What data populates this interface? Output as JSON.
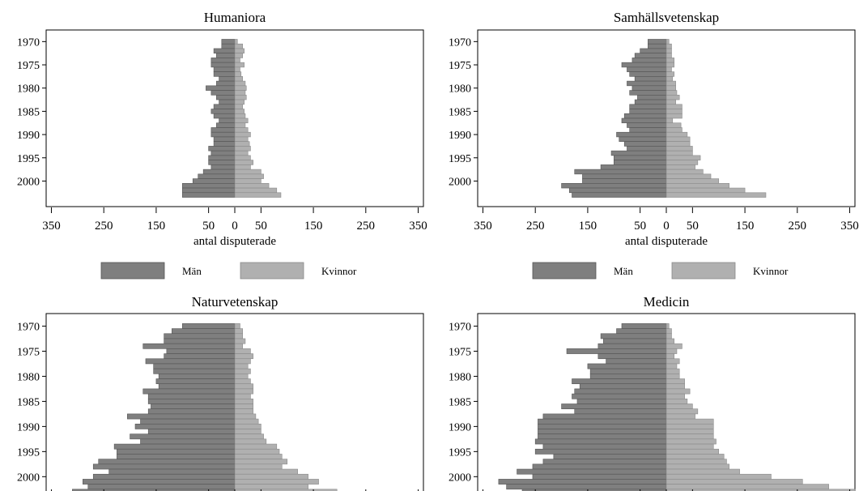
{
  "colors": {
    "men": "#7f7f7f",
    "women": "#b0b0b0",
    "frame": "#000000",
    "background": "#ffffff"
  },
  "xlabel": "antal disputerade",
  "legend": {
    "men_label": "Män",
    "women_label": "Kvinnor"
  },
  "chart_data": [
    {
      "type": "bar",
      "orientation": "population-pyramid",
      "title": "Humaniora",
      "xlabel": "antal disputerade",
      "xlim": [
        -360,
        360
      ],
      "xticks": [
        -350,
        -250,
        -150,
        -50,
        0,
        50,
        150,
        250,
        350
      ],
      "xtick_labels": [
        "350",
        "250",
        "150",
        "50",
        "0",
        "50",
        "150",
        "250",
        "350"
      ],
      "ylim": [
        1967.5,
        2005.5
      ],
      "yticks": [
        1970,
        1975,
        1980,
        1985,
        1990,
        1995,
        2000
      ],
      "categories": [
        1970,
        1971,
        1972,
        1973,
        1974,
        1975,
        1976,
        1977,
        1978,
        1979,
        1980,
        1981,
        1982,
        1983,
        1984,
        1985,
        1986,
        1987,
        1988,
        1989,
        1990,
        1991,
        1992,
        1993,
        1994,
        1995,
        1996,
        1997,
        1998,
        1999,
        2000,
        2001,
        2002,
        2003
      ],
      "legend": [
        "Män",
        "Kvinnor"
      ],
      "series": [
        {
          "name": "Män",
          "values": [
            25,
            25,
            40,
            35,
            45,
            45,
            40,
            40,
            30,
            35,
            55,
            45,
            35,
            30,
            40,
            45,
            40,
            30,
            35,
            45,
            45,
            40,
            40,
            50,
            45,
            50,
            50,
            45,
            60,
            70,
            80,
            100,
            100,
            100
          ]
        },
        {
          "name": "Kvinnor",
          "values": [
            5,
            15,
            18,
            15,
            10,
            18,
            10,
            12,
            15,
            20,
            22,
            20,
            22,
            18,
            15,
            18,
            20,
            25,
            20,
            25,
            30,
            25,
            28,
            30,
            25,
            30,
            35,
            30,
            50,
            55,
            50,
            65,
            80,
            88
          ]
        }
      ]
    },
    {
      "type": "bar",
      "orientation": "population-pyramid",
      "title": "Samhällsvetenskap",
      "xlabel": "antal disputerade",
      "xlim": [
        -360,
        360
      ],
      "xticks": [
        -350,
        -250,
        -150,
        -50,
        0,
        50,
        150,
        250,
        350
      ],
      "xtick_labels": [
        "350",
        "250",
        "150",
        "50",
        "0",
        "50",
        "150",
        "250",
        "350"
      ],
      "ylim": [
        1967.5,
        2005.5
      ],
      "yticks": [
        1970,
        1975,
        1980,
        1985,
        1990,
        1995,
        2000
      ],
      "categories": [
        1970,
        1971,
        1972,
        1973,
        1974,
        1975,
        1976,
        1977,
        1978,
        1979,
        1980,
        1981,
        1982,
        1983,
        1984,
        1985,
        1986,
        1987,
        1988,
        1989,
        1990,
        1991,
        1992,
        1993,
        1994,
        1995,
        1996,
        1997,
        1998,
        1999,
        2000,
        2001,
        2002,
        2003
      ],
      "legend": [
        "Män",
        "Kvinnor"
      ],
      "series": [
        {
          "name": "Män",
          "values": [
            35,
            35,
            50,
            60,
            65,
            85,
            75,
            70,
            60,
            75,
            65,
            70,
            55,
            60,
            70,
            70,
            80,
            85,
            75,
            70,
            95,
            90,
            80,
            75,
            105,
            100,
            100,
            125,
            175,
            160,
            160,
            200,
            185,
            180
          ]
        },
        {
          "name": "Kvinnor",
          "values": [
            5,
            10,
            10,
            10,
            15,
            15,
            10,
            15,
            12,
            18,
            18,
            20,
            25,
            18,
            30,
            30,
            30,
            12,
            28,
            30,
            40,
            45,
            45,
            50,
            50,
            65,
            60,
            55,
            70,
            85,
            100,
            120,
            150,
            190
          ]
        }
      ]
    },
    {
      "type": "bar",
      "orientation": "population-pyramid",
      "title": "Naturvetenskap",
      "xlabel": "",
      "xlim": [
        -360,
        360
      ],
      "xticks": [
        -350,
        -250,
        -150,
        -50,
        0,
        50,
        150,
        250,
        350
      ],
      "ylim": [
        1967.5,
        2003.5
      ],
      "yticks": [
        1970,
        1975,
        1980,
        1985,
        1990,
        1995,
        2000
      ],
      "categories": [
        1970,
        1971,
        1972,
        1973,
        1974,
        1975,
        1976,
        1977,
        1978,
        1979,
        1980,
        1981,
        1982,
        1983,
        1984,
        1985,
        1986,
        1987,
        1988,
        1989,
        1990,
        1991,
        1992,
        1993,
        1994,
        1995,
        1996,
        1997,
        1998,
        1999,
        2000,
        2001,
        2002,
        2003
      ],
      "legend": [],
      "series": [
        {
          "name": "Män",
          "values": [
            100,
            120,
            135,
            135,
            175,
            130,
            135,
            170,
            155,
            155,
            145,
            150,
            145,
            175,
            165,
            165,
            160,
            165,
            205,
            180,
            190,
            165,
            200,
            180,
            230,
            225,
            225,
            260,
            270,
            240,
            270,
            290,
            280,
            310
          ]
        },
        {
          "name": "Kvinnor",
          "values": [
            10,
            15,
            15,
            20,
            15,
            30,
            35,
            30,
            25,
            30,
            25,
            30,
            35,
            35,
            30,
            35,
            35,
            35,
            40,
            45,
            50,
            50,
            55,
            60,
            80,
            85,
            90,
            100,
            90,
            120,
            140,
            160,
            140,
            195
          ]
        }
      ]
    },
    {
      "type": "bar",
      "orientation": "population-pyramid",
      "title": "Medicin",
      "xlabel": "",
      "xlim": [
        -360,
        360
      ],
      "xticks": [
        -350,
        -250,
        -150,
        -50,
        0,
        50,
        150,
        250,
        350
      ],
      "ylim": [
        1967.5,
        2003.5
      ],
      "yticks": [
        1970,
        1975,
        1980,
        1985,
        1990,
        1995,
        2000
      ],
      "categories": [
        1970,
        1971,
        1972,
        1973,
        1974,
        1975,
        1976,
        1977,
        1978,
        1979,
        1980,
        1981,
        1982,
        1983,
        1984,
        1985,
        1986,
        1987,
        1988,
        1989,
        1990,
        1991,
        1992,
        1993,
        1994,
        1995,
        1996,
        1997,
        1998,
        1999,
        2000,
        2001,
        2002,
        2003
      ],
      "legend": [],
      "series": [
        {
          "name": "Män",
          "values": [
            85,
            95,
            125,
            120,
            130,
            190,
            130,
            115,
            150,
            145,
            145,
            180,
            165,
            175,
            180,
            170,
            200,
            175,
            235,
            245,
            245,
            245,
            245,
            250,
            235,
            250,
            215,
            235,
            255,
            285,
            255,
            320,
            305,
            275
          ]
        },
        {
          "name": "Kvinnor",
          "values": [
            5,
            10,
            10,
            15,
            30,
            20,
            15,
            25,
            20,
            25,
            25,
            35,
            35,
            45,
            35,
            40,
            50,
            60,
            55,
            90,
            90,
            90,
            90,
            95,
            90,
            100,
            110,
            115,
            120,
            140,
            200,
            260,
            310,
            360
          ]
        }
      ]
    }
  ]
}
